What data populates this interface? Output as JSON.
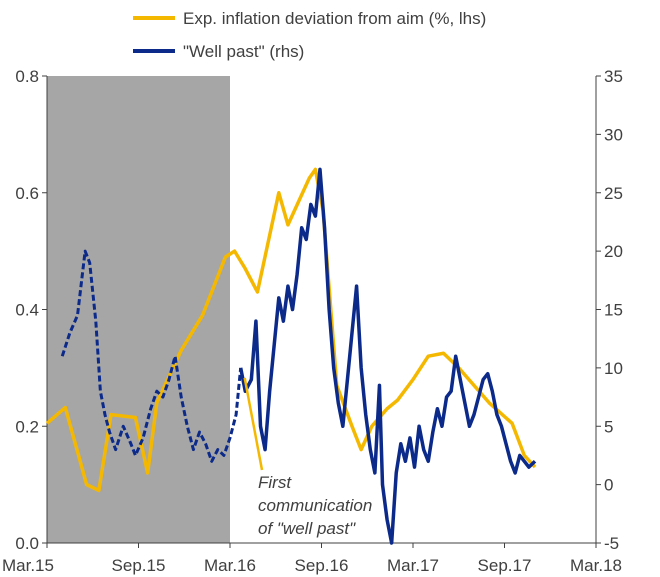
{
  "chart_data": {
    "type": "line",
    "title": "",
    "x_tick_labels": [
      "Mar.15",
      "Sep.15",
      "Mar.16",
      "Sep.16",
      "Mar.17",
      "Sep.17",
      "Mar.18"
    ],
    "y_left": {
      "min": 0,
      "max": 0.8,
      "ticks": [
        "0.0",
        "0.2",
        "0.4",
        "0.6",
        "0.8"
      ]
    },
    "y_right": {
      "min": -5,
      "max": 35,
      "ticks": [
        "-5",
        "0",
        "5",
        "10",
        "15",
        "20",
        "25",
        "30",
        "35"
      ]
    },
    "shaded_region": {
      "from": "Mar.15",
      "to": "Mar.16",
      "color": "#a6a6a6"
    },
    "legend": {
      "placement": "top-center",
      "items": [
        {
          "label": "Exp. inflation deviation from aim (%, lhs)",
          "color": "#f5b800"
        },
        {
          "label": "\"Well past\" (rhs)",
          "color": "#0b2a8a"
        }
      ]
    },
    "annotation": {
      "lines": [
        "First",
        "communication",
        "of \"well past\""
      ],
      "points_to": {
        "x": 12.7,
        "y_rhs": 10
      }
    },
    "series": [
      {
        "name": "Exp. inflation deviation from aim (%, lhs)",
        "axis": "left",
        "color": "#f5b800",
        "points": [
          [
            0,
            0.205
          ],
          [
            1.2,
            0.232
          ],
          [
            2.6,
            0.1
          ],
          [
            3.4,
            0.09
          ],
          [
            4.2,
            0.22
          ],
          [
            5.8,
            0.215
          ],
          [
            6.6,
            0.12
          ],
          [
            7.2,
            0.24
          ],
          [
            8.8,
            0.33
          ],
          [
            10.2,
            0.39
          ],
          [
            11.7,
            0.49
          ],
          [
            12.3,
            0.5
          ],
          [
            13.0,
            0.47
          ],
          [
            13.8,
            0.43
          ],
          [
            15.2,
            0.6
          ],
          [
            15.8,
            0.545
          ],
          [
            17.2,
            0.625
          ],
          [
            17.6,
            0.64
          ],
          [
            18.1,
            0.57
          ],
          [
            19.0,
            0.27
          ],
          [
            20.0,
            0.2
          ],
          [
            20.6,
            0.16
          ],
          [
            21.3,
            0.2
          ],
          [
            22.3,
            0.23
          ],
          [
            23.0,
            0.245
          ],
          [
            24.0,
            0.28
          ],
          [
            25.0,
            0.32
          ],
          [
            26.0,
            0.325
          ],
          [
            27.0,
            0.3
          ],
          [
            29.0,
            0.24
          ],
          [
            30.5,
            0.205
          ],
          [
            31.3,
            0.15
          ],
          [
            32.0,
            0.13
          ]
        ]
      },
      {
        "name": "\"Well past\" (rhs)",
        "axis": "right",
        "color": "#0b2a8a",
        "solid_from": 12.7,
        "points": [
          [
            1.0,
            11.0
          ],
          [
            1.5,
            13.0
          ],
          [
            2.0,
            14.5
          ],
          [
            2.5,
            20.0
          ],
          [
            2.8,
            19.0
          ],
          [
            3.2,
            14.0
          ],
          [
            3.5,
            8.0
          ],
          [
            3.8,
            6.0
          ],
          [
            4.1,
            4.5
          ],
          [
            4.5,
            3.0
          ],
          [
            5.0,
            5.0
          ],
          [
            5.5,
            3.5
          ],
          [
            5.8,
            2.5
          ],
          [
            6.3,
            4.0
          ],
          [
            6.8,
            6.5
          ],
          [
            7.2,
            8.0
          ],
          [
            7.6,
            7.5
          ],
          [
            8.0,
            9.0
          ],
          [
            8.4,
            11.0
          ],
          [
            8.8,
            7.5
          ],
          [
            9.2,
            5.0
          ],
          [
            9.6,
            3.0
          ],
          [
            10.0,
            4.5
          ],
          [
            10.4,
            3.5
          ],
          [
            10.8,
            2.0
          ],
          [
            11.2,
            3.0
          ],
          [
            11.6,
            2.5
          ],
          [
            12.0,
            4.0
          ],
          [
            12.4,
            6.0
          ],
          [
            12.7,
            10.0
          ],
          [
            13.0,
            8.0
          ],
          [
            13.4,
            9.0
          ],
          [
            13.7,
            14.0
          ],
          [
            14.0,
            5.0
          ],
          [
            14.3,
            3.0
          ],
          [
            14.6,
            8.0
          ],
          [
            14.9,
            12.0
          ],
          [
            15.2,
            16.0
          ],
          [
            15.5,
            14.0
          ],
          [
            15.8,
            17.0
          ],
          [
            16.1,
            15.0
          ],
          [
            16.4,
            18.0
          ],
          [
            16.7,
            22.0
          ],
          [
            17.0,
            21.0
          ],
          [
            17.3,
            24.0
          ],
          [
            17.6,
            23.0
          ],
          [
            17.9,
            27.0
          ],
          [
            18.2,
            22.0
          ],
          [
            18.5,
            15.0
          ],
          [
            18.8,
            10.0
          ],
          [
            19.1,
            7.0
          ],
          [
            19.4,
            5.0
          ],
          [
            19.7,
            9.0
          ],
          [
            20.0,
            13.0
          ],
          [
            20.3,
            17.0
          ],
          [
            20.6,
            10.0
          ],
          [
            20.9,
            6.0
          ],
          [
            21.2,
            3.0
          ],
          [
            21.5,
            1.0
          ],
          [
            21.8,
            8.5
          ],
          [
            22.0,
            0.0
          ],
          [
            22.3,
            -3.0
          ],
          [
            22.6,
            -5.0
          ],
          [
            22.9,
            1.0
          ],
          [
            23.2,
            3.5
          ],
          [
            23.5,
            2.0
          ],
          [
            23.8,
            4.0
          ],
          [
            24.1,
            1.5
          ],
          [
            24.4,
            5.0
          ],
          [
            24.7,
            3.0
          ],
          [
            25.0,
            2.0
          ],
          [
            25.3,
            4.5
          ],
          [
            25.6,
            6.5
          ],
          [
            25.9,
            5.0
          ],
          [
            26.2,
            7.5
          ],
          [
            26.5,
            8.0
          ],
          [
            26.8,
            11.0
          ],
          [
            27.1,
            9.0
          ],
          [
            27.4,
            7.0
          ],
          [
            27.7,
            5.0
          ],
          [
            28.0,
            6.0
          ],
          [
            28.3,
            7.5
          ],
          [
            28.6,
            9.0
          ],
          [
            28.9,
            9.5
          ],
          [
            29.2,
            8.0
          ],
          [
            29.5,
            6.0
          ],
          [
            29.8,
            5.0
          ],
          [
            30.1,
            3.5
          ],
          [
            30.4,
            2.0
          ],
          [
            30.7,
            1.0
          ],
          [
            31.0,
            2.5
          ],
          [
            31.3,
            2.0
          ],
          [
            31.6,
            1.5
          ],
          [
            32.0,
            2.0
          ]
        ]
      }
    ]
  }
}
